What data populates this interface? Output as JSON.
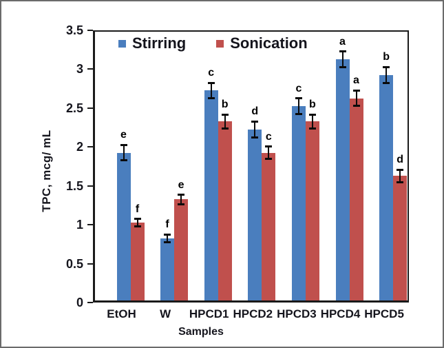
{
  "chart_data": {
    "type": "bar",
    "title": "",
    "categories": [
      "EtOH",
      "W",
      "HPCD1",
      "HPCD2",
      "HPCD3",
      "HPCD4",
      "HPCD5"
    ],
    "series": [
      {
        "name": "Stirring",
        "color": "#4A7EBE",
        "values": [
          1.9,
          0.8,
          2.7,
          2.2,
          2.5,
          3.1,
          2.9
        ],
        "errors": [
          0.1,
          0.05,
          0.1,
          0.1,
          0.1,
          0.1,
          0.1
        ],
        "letters": [
          "e",
          "f",
          "c",
          "d",
          "c",
          "a",
          "b"
        ]
      },
      {
        "name": "Sonication",
        "color": "#C0504D",
        "values": [
          1.0,
          1.3,
          2.3,
          1.9,
          2.3,
          2.6,
          1.6
        ],
        "errors": [
          0.05,
          0.06,
          0.09,
          0.08,
          0.09,
          0.1,
          0.08
        ],
        "letters": [
          "f",
          "e",
          "b",
          "c",
          "b",
          "a",
          "d"
        ]
      }
    ],
    "xlabel": "Samples",
    "ylabel": "TPC, mcg/ mL",
    "ylim": [
      0,
      3.5
    ],
    "ytick_step": 0.5,
    "yticks": [
      "3.5",
      "3",
      "2.5",
      "2",
      "1.5",
      "1",
      "0.5",
      "0"
    ],
    "legend_position": "top-inside",
    "grid": false,
    "axis_color": "#1a1a1a",
    "text_color": "#15151d",
    "error_bar_color": "#0a0a0a",
    "frame_color": "#6b6b6b"
  }
}
